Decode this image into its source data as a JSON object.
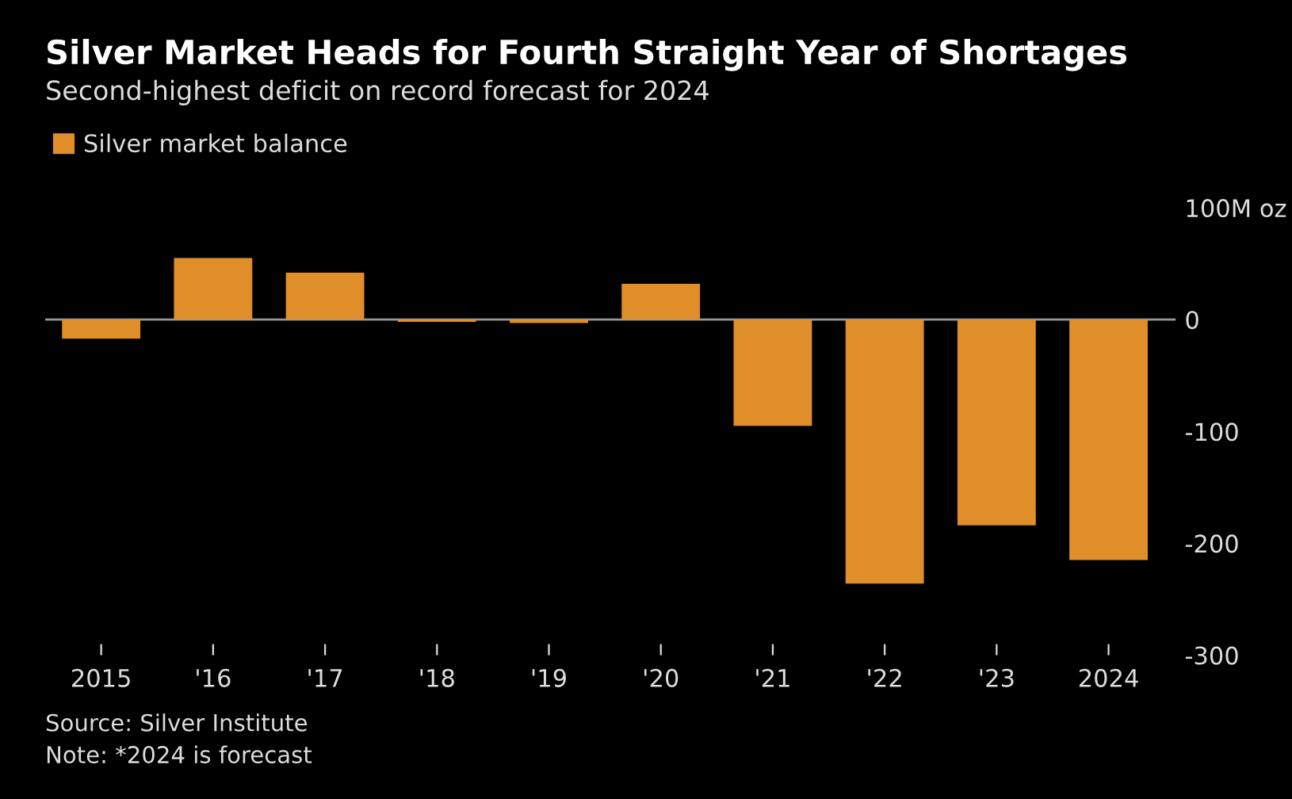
{
  "chart_data": {
    "type": "bar",
    "title": "Silver Market Heads for Fourth Straight Year of Shortages",
    "subtitle": "Second-highest deficit on record forecast for 2024",
    "categories": [
      "2015",
      "'16",
      "'17",
      "'18",
      "'19",
      "'20",
      "'21",
      "'22",
      "'23",
      "2024"
    ],
    "series": [
      {
        "name": "Silver market balance",
        "color": "#e08e2a",
        "values": [
          -17,
          55,
          42,
          -2,
          -3,
          32,
          -95,
          -236,
          -184,
          -215
        ]
      }
    ],
    "ylim": [
      -300,
      100
    ],
    "yticks": [
      {
        "value": 100,
        "label": "100M oz"
      },
      0,
      -100,
      -200,
      -300
    ],
    "grid": false,
    "legend": "top left",
    "ref_lines": [
      {
        "axis": "y",
        "value": 0,
        "color": "#999999"
      }
    ],
    "annotations": [
      "Source: Silver Institute",
      "Note: *2024 is forecast"
    ]
  }
}
